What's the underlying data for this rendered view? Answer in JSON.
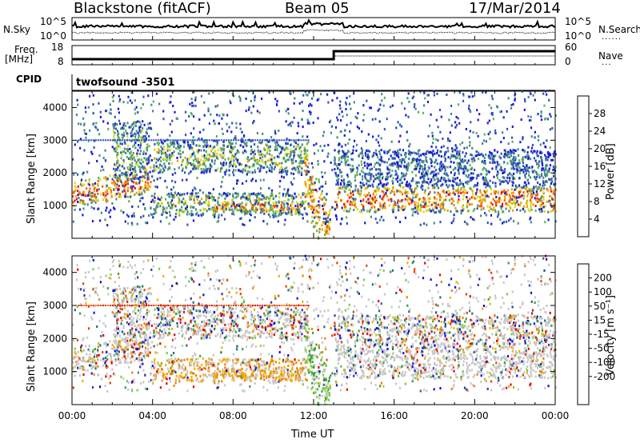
{
  "header": {
    "station": "Blackstone (fitACF)",
    "beam": "Beam 05",
    "date": "17/Mar/2014"
  },
  "aux_labels": {
    "nsky": "N.Sky",
    "nsearch": "N.Search",
    "freq": "Freq.",
    "freq_unit": "[MHz]",
    "nave": "Nave",
    "cpid": "CPID",
    "cpid_value": "twofsound -3501",
    "noise_ticks": [
      "10^5",
      "10^0"
    ],
    "freq_ticks": [
      "18",
      "8"
    ],
    "nave_ticks": [
      "60",
      "0"
    ]
  },
  "colors": {
    "power": [
      "#1a1ad8",
      "#2f55b8",
      "#4a8a8a",
      "#5fb35a",
      "#d8d820",
      "#f0a000",
      "#f06000",
      "#e81818"
    ],
    "velocity": [
      "#1010e0",
      "#2840a8",
      "#2a6e70",
      "#3a9e3a",
      "#7acc40",
      "#c8c8c8",
      "#f0b000",
      "#f08000",
      "#e84010",
      "#e80000"
    ]
  },
  "chart_data": [
    {
      "type": "heatmap",
      "name": "power",
      "ylabel": "Slant Range [km]",
      "xlabel": "",
      "ylim": [
        0,
        4500
      ],
      "yticks": [
        "1000",
        "2000",
        "3000",
        "4000"
      ],
      "colorbar_label": "Power [dB]",
      "colorbar_ticks": [
        "4",
        "8",
        "12",
        "16",
        "20",
        "24",
        "28"
      ],
      "colorbar_range": [
        0,
        32
      ]
    },
    {
      "type": "heatmap",
      "name": "velocity",
      "ylabel": "Slant Range [km]",
      "xlabel": "Time UT",
      "ylim": [
        0,
        4500
      ],
      "yticks": [
        "1000",
        "2000",
        "3000",
        "4000"
      ],
      "xticks": [
        "00:00",
        "04:00",
        "08:00",
        "12:00",
        "16:00",
        "20:00",
        "00:00"
      ],
      "xlim_hours": [
        0,
        24
      ],
      "colorbar_label": "Velocity [m s⁻¹]",
      "colorbar_ticks": [
        "200",
        "100",
        "50",
        "15",
        "-15",
        "-50",
        "-100",
        "-200"
      ]
    }
  ],
  "echo_bands": [
    {
      "t0": 0.0,
      "t1": 3.9,
      "r0": 900,
      "r1": 1700,
      "slope": 500,
      "pw": 26,
      "vel": "mixed"
    },
    {
      "t0": 2.0,
      "t1": 3.8,
      "r0": 1800,
      "r1": 3600,
      "slope": 0,
      "pw": 12,
      "vel": "mixed"
    },
    {
      "t0": 4.0,
      "t1": 11.7,
      "r0": 2000,
      "r1": 3000,
      "slope": 0,
      "pw": 14,
      "vel": "mixed"
    },
    {
      "t0": 4.0,
      "t1": 11.7,
      "r0": 700,
      "r1": 1400,
      "slope": 0,
      "pw": 16,
      "vel": "away"
    },
    {
      "t0": 7.0,
      "t1": 11.5,
      "r0": 800,
      "r1": 1100,
      "slope": 0,
      "pw": 24,
      "vel": "away"
    },
    {
      "t0": 11.5,
      "t1": 12.8,
      "r0": 900,
      "r1": 2800,
      "slope": -1900,
      "pw": 22,
      "vel": "toward"
    },
    {
      "t0": 13.0,
      "t1": 24.0,
      "r0": 800,
      "r1": 1600,
      "slope": 0,
      "pw": 24,
      "vel": "ground"
    },
    {
      "t0": 13.0,
      "t1": 24.0,
      "r0": 1600,
      "r1": 2700,
      "slope": 0,
      "pw": 8,
      "vel": "mixed"
    }
  ]
}
